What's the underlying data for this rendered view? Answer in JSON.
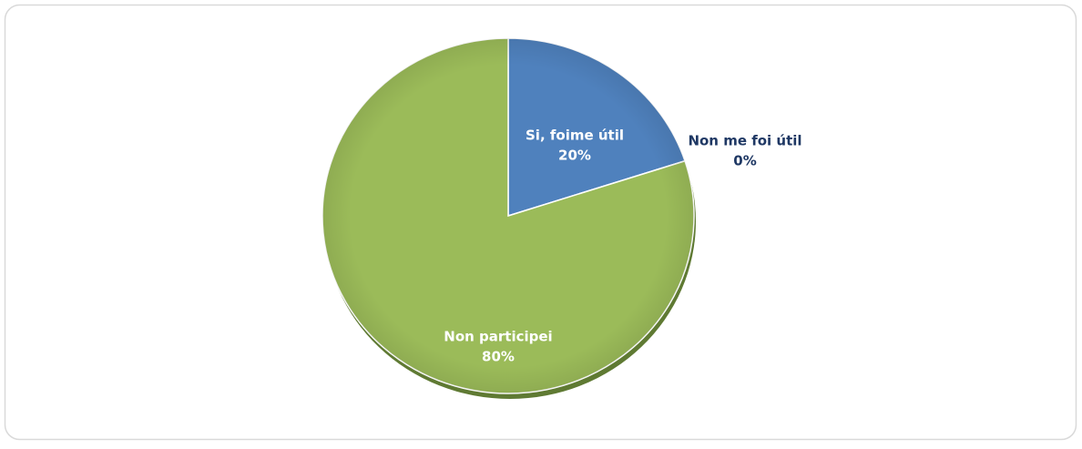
{
  "chart_data": {
    "type": "pie",
    "categories": [
      "Si, foime útil",
      "Non me foi útil",
      "Non participei"
    ],
    "values": [
      20,
      0,
      80
    ],
    "value_labels": [
      "20%",
      "0%",
      "80%"
    ],
    "colors": [
      "#4f81bd",
      "#c0504d",
      "#9bbb59"
    ]
  }
}
